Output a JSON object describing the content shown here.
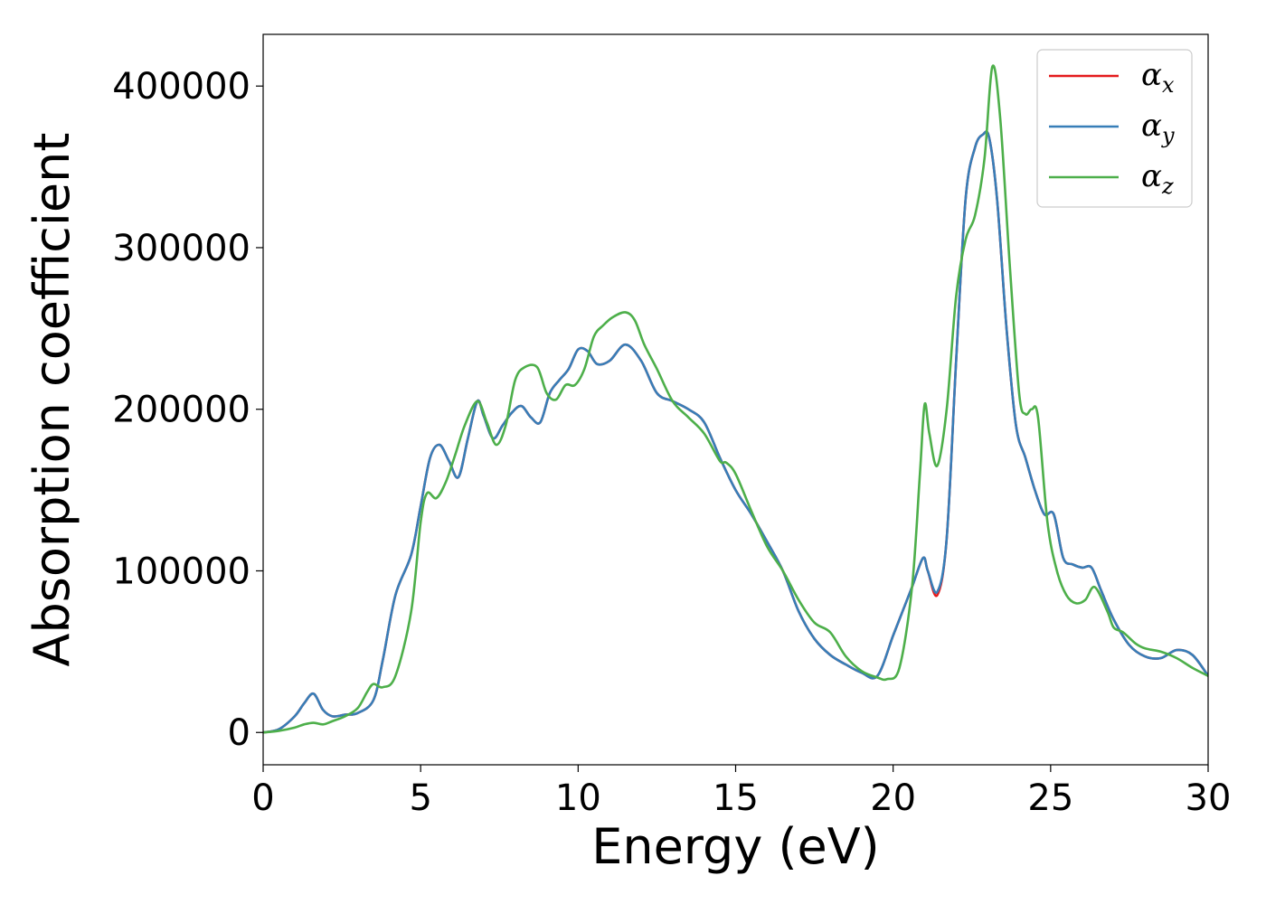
{
  "chart_data": {
    "type": "line",
    "title": "",
    "xlabel": "Energy (eV)",
    "ylabel": "Absorption coefficient",
    "xlim": [
      0,
      30
    ],
    "ylim": [
      -20000,
      432000
    ],
    "xticks": [
      0,
      5,
      10,
      15,
      20,
      25,
      30
    ],
    "xtick_labels": [
      "0",
      "5",
      "10",
      "15",
      "20",
      "25",
      "30"
    ],
    "yticks": [
      0,
      100000,
      200000,
      300000,
      400000
    ],
    "ytick_labels": [
      "0",
      "100000",
      "200000",
      "300000",
      "400000"
    ],
    "grid": false,
    "legend_position": "top-right",
    "series": [
      {
        "name": "αx",
        "name_base": "α",
        "name_sub": "x",
        "color": "#e41a1c",
        "x": [
          0,
          0.5,
          1,
          1.3,
          1.6,
          1.9,
          2.2,
          2.6,
          3,
          3.5,
          3.8,
          4.2,
          4.7,
          5,
          5.3,
          5.6,
          5.9,
          6.2,
          6.5,
          6.8,
          7.0,
          7.3,
          7.6,
          7.9,
          8.2,
          8.5,
          8.8,
          9.1,
          9.4,
          9.7,
          10.0,
          10.3,
          10.6,
          11.0,
          11.5,
          12.0,
          12.5,
          13,
          13.5,
          14,
          14.5,
          15,
          15.5,
          16,
          16.5,
          17,
          17.5,
          18,
          18.5,
          19,
          19.5,
          20,
          20.3,
          20.6,
          20.95,
          21.1,
          21.4,
          21.7,
          22,
          22.3,
          22.6,
          22.85,
          23.05,
          23.3,
          23.6,
          23.9,
          24.2,
          24.5,
          24.8,
          25.1,
          25.4,
          25.7,
          26,
          26.3,
          26.6,
          27,
          27.5,
          28,
          28.5,
          29,
          29.5,
          30
        ],
        "y": [
          0,
          2000,
          10000,
          18000,
          24000,
          14000,
          10000,
          11000,
          12000,
          20000,
          45000,
          85000,
          110000,
          140000,
          170000,
          178000,
          168000,
          158000,
          182000,
          205000,
          196000,
          182000,
          190000,
          198000,
          202000,
          195000,
          192000,
          210000,
          218000,
          225000,
          237000,
          236000,
          228000,
          230000,
          240000,
          230000,
          210000,
          205000,
          200000,
          192000,
          170000,
          150000,
          135000,
          118000,
          100000,
          75000,
          58000,
          48000,
          42000,
          37000,
          35000,
          60000,
          75000,
          90000,
          108000,
          100000,
          85000,
          120000,
          230000,
          330000,
          362000,
          370000,
          368000,
          330000,
          250000,
          190000,
          170000,
          150000,
          135000,
          135000,
          108000,
          104000,
          102000,
          102000,
          88000,
          70000,
          54000,
          47000,
          46000,
          51000,
          48000,
          35000
        ]
      },
      {
        "name": "αy",
        "name_base": "α",
        "name_sub": "y",
        "color": "#377eb8",
        "x": [
          0,
          0.5,
          1,
          1.3,
          1.6,
          1.9,
          2.2,
          2.6,
          3,
          3.5,
          3.8,
          4.2,
          4.7,
          5,
          5.3,
          5.6,
          5.9,
          6.2,
          6.5,
          6.8,
          7.0,
          7.3,
          7.6,
          7.9,
          8.2,
          8.5,
          8.8,
          9.1,
          9.4,
          9.7,
          10.0,
          10.3,
          10.6,
          11.0,
          11.5,
          12.0,
          12.5,
          13,
          13.5,
          14,
          14.5,
          15,
          15.5,
          16,
          16.5,
          17,
          17.5,
          18,
          18.5,
          19,
          19.5,
          20,
          20.3,
          20.6,
          20.95,
          21.1,
          21.4,
          21.7,
          22,
          22.3,
          22.6,
          22.85,
          23.05,
          23.3,
          23.6,
          23.9,
          24.2,
          24.5,
          24.8,
          25.1,
          25.4,
          25.7,
          26,
          26.3,
          26.6,
          27,
          27.5,
          28,
          28.5,
          29,
          29.5,
          30
        ],
        "y": [
          0,
          2000,
          10000,
          18000,
          24000,
          14000,
          10000,
          11000,
          12000,
          20000,
          45000,
          85000,
          110000,
          140000,
          170000,
          178000,
          168000,
          158000,
          182000,
          205000,
          196000,
          182000,
          190000,
          198000,
          202000,
          195000,
          192000,
          210000,
          218000,
          225000,
          237000,
          236000,
          228000,
          230000,
          240000,
          230000,
          210000,
          205000,
          200000,
          192000,
          170000,
          150000,
          135000,
          118000,
          100000,
          75000,
          58000,
          48000,
          42000,
          37000,
          35000,
          60000,
          75000,
          90000,
          108000,
          100000,
          87000,
          120000,
          230000,
          330000,
          362000,
          370000,
          368000,
          330000,
          250000,
          190000,
          170000,
          150000,
          135000,
          135000,
          108000,
          104000,
          102000,
          102000,
          88000,
          70000,
          54000,
          47000,
          46000,
          51000,
          48000,
          35000
        ]
      },
      {
        "name": "αz",
        "name_base": "α",
        "name_sub": "z",
        "color": "#4daf4a",
        "x": [
          0,
          0.5,
          1,
          1.3,
          1.6,
          1.9,
          2.2,
          2.6,
          3,
          3.3,
          3.5,
          3.8,
          4.2,
          4.7,
          5,
          5.2,
          5.5,
          5.8,
          6.1,
          6.4,
          6.8,
          7.1,
          7.4,
          7.7,
          8.0,
          8.3,
          8.7,
          9.0,
          9.3,
          9.6,
          9.9,
          10.2,
          10.5,
          10.8,
          11.1,
          11.5,
          11.8,
          12.1,
          12.5,
          13,
          13.5,
          14,
          14.5,
          14.7,
          15,
          15.5,
          16,
          16.5,
          17,
          17.5,
          18,
          18.5,
          19,
          19.5,
          19.8,
          20.2,
          20.6,
          20.85,
          21.0,
          21.15,
          21.4,
          21.7,
          22,
          22.3,
          22.6,
          22.9,
          23.15,
          23.4,
          23.7,
          24,
          24.2,
          24.4,
          24.6,
          24.9,
          25.2,
          25.5,
          25.8,
          26.1,
          26.4,
          26.8,
          27,
          27.3,
          27.7,
          28,
          28.5,
          29,
          29.5,
          30
        ],
        "y": [
          0,
          1000,
          3000,
          5000,
          6000,
          5000,
          7000,
          10000,
          15000,
          25000,
          30000,
          28000,
          35000,
          75000,
          130000,
          148000,
          145000,
          155000,
          172000,
          190000,
          205000,
          192000,
          178000,
          190000,
          218000,
          226000,
          226000,
          210000,
          206000,
          215000,
          215000,
          225000,
          245000,
          252000,
          257000,
          260000,
          255000,
          240000,
          225000,
          205000,
          195000,
          185000,
          168000,
          167000,
          160000,
          137000,
          115000,
          100000,
          82000,
          68000,
          62000,
          47000,
          38000,
          34000,
          33000,
          40000,
          90000,
          160000,
          203000,
          185000,
          165000,
          200000,
          270000,
          305000,
          320000,
          355000,
          412000,
          380000,
          290000,
          210000,
          197000,
          200000,
          195000,
          130000,
          100000,
          85000,
          80000,
          82000,
          90000,
          75000,
          65000,
          62000,
          55000,
          52000,
          50000,
          46000,
          40000,
          35000
        ]
      }
    ]
  }
}
